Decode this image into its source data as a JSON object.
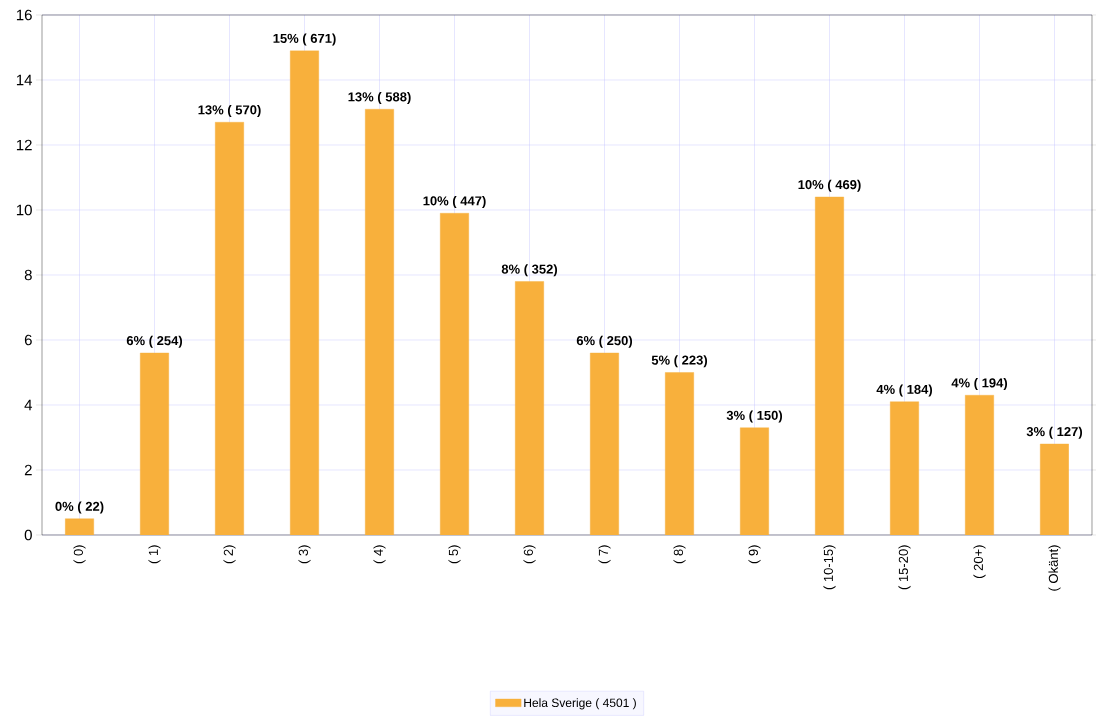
{
  "chart_data": {
    "type": "bar",
    "categories": [
      "( 0)",
      "( 1)",
      "( 2)",
      "( 3)",
      "( 4)",
      "( 5)",
      "( 6)",
      "( 7)",
      "( 8)",
      "( 9)",
      "( 10-15)",
      "( 15-20)",
      "( 20+)",
      "( Okänt)"
    ],
    "series": [
      {
        "name": "Hela Sverige  ( 4501 )",
        "color": "#f8b03c",
        "values": [
          0.5,
          5.6,
          12.7,
          14.9,
          13.1,
          9.9,
          7.8,
          5.6,
          5.0,
          3.3,
          10.4,
          4.1,
          4.3,
          2.8
        ],
        "value_labels": [
          "0% ( 22)",
          "6% ( 254)",
          "13% ( 570)",
          "15% ( 671)",
          "13% ( 588)",
          "10% ( 447)",
          "8% ( 352)",
          "6% ( 250)",
          "5% ( 223)",
          "3% ( 150)",
          "10% ( 469)",
          "4% ( 184)",
          "4% ( 194)",
          "3% ( 127)"
        ]
      }
    ],
    "ylim": [
      0,
      16
    ],
    "yticks": [
      0,
      2,
      4,
      6,
      8,
      10,
      12,
      14,
      16
    ],
    "grid": true,
    "legend": "bottom"
  }
}
